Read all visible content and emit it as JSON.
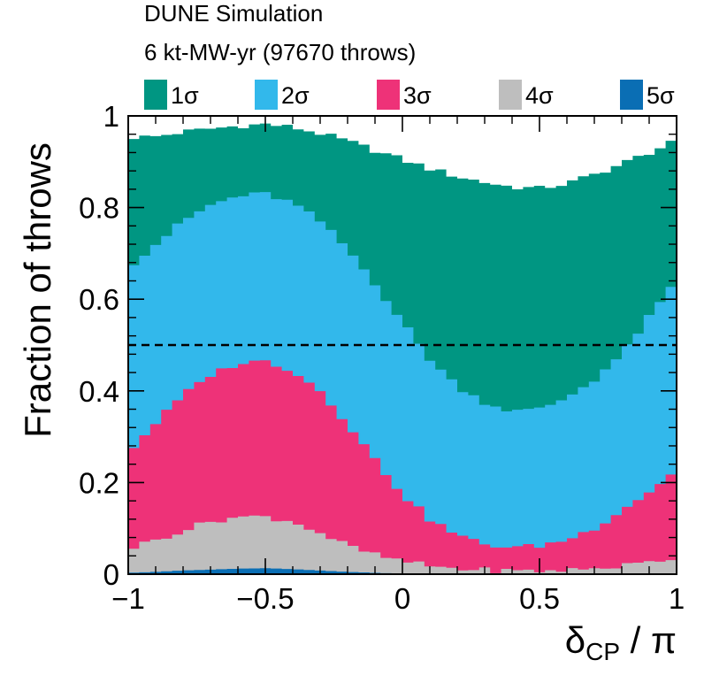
{
  "chart_data": {
    "type": "area",
    "stacked": true,
    "title": "DUNE Simulation",
    "subtitle": "6 kt-MW-yr (97670 throws)",
    "xlabel": "δCP / π",
    "xlabel_main": "δ",
    "xlabel_sub": "CP",
    "xlabel_rest": " / π",
    "ylabel": "Fraction of throws",
    "xlim": [
      -1,
      1
    ],
    "ylim": [
      0,
      1
    ],
    "x_ticks": [
      -1,
      -0.5,
      0,
      0.5,
      1
    ],
    "x_tick_labels": [
      "−1",
      "−0.5",
      "0",
      "0.5",
      "1"
    ],
    "y_ticks": [
      0,
      0.2,
      0.4,
      0.6,
      0.8,
      1
    ],
    "y_tick_labels": [
      "0",
      "0.2",
      "0.4",
      "0.6",
      "0.8",
      "1"
    ],
    "reference_line": {
      "y": 0.5,
      "style": "dashed"
    },
    "legend_position": "top",
    "x": [
      -0.95,
      -0.5,
      0,
      0.5,
      1
    ],
    "series": [
      {
        "name": "1σ",
        "label": "1σ",
        "color": "#009682",
        "points": [
          [
            -1,
            0.953
          ],
          [
            -0.9,
            0.955
          ],
          [
            -0.8,
            0.965
          ],
          [
            -0.7,
            0.972
          ],
          [
            -0.6,
            0.978
          ],
          [
            -0.5,
            0.982
          ],
          [
            -0.4,
            0.975
          ],
          [
            -0.3,
            0.962
          ],
          [
            -0.2,
            0.945
          ],
          [
            -0.1,
            0.925
          ],
          [
            0,
            0.905
          ],
          [
            0.1,
            0.885
          ],
          [
            0.2,
            0.868
          ],
          [
            0.3,
            0.855
          ],
          [
            0.4,
            0.845
          ],
          [
            0.5,
            0.842
          ],
          [
            0.6,
            0.852
          ],
          [
            0.7,
            0.872
          ],
          [
            0.8,
            0.895
          ],
          [
            0.9,
            0.92
          ],
          [
            1,
            0.945
          ]
        ]
      },
      {
        "name": "2σ",
        "label": "2σ",
        "color": "#32b8eb",
        "points": [
          [
            -1,
            0.67
          ],
          [
            -0.9,
            0.72
          ],
          [
            -0.8,
            0.77
          ],
          [
            -0.7,
            0.805
          ],
          [
            -0.6,
            0.825
          ],
          [
            -0.5,
            0.83
          ],
          [
            -0.4,
            0.81
          ],
          [
            -0.3,
            0.77
          ],
          [
            -0.2,
            0.71
          ],
          [
            -0.1,
            0.635
          ],
          [
            0,
            0.55
          ],
          [
            0.1,
            0.47
          ],
          [
            0.2,
            0.41
          ],
          [
            0.3,
            0.375
          ],
          [
            0.4,
            0.355
          ],
          [
            0.5,
            0.36
          ],
          [
            0.6,
            0.385
          ],
          [
            0.7,
            0.425
          ],
          [
            0.8,
            0.48
          ],
          [
            0.9,
            0.56
          ],
          [
            1,
            0.64
          ]
        ]
      },
      {
        "name": "3σ",
        "label": "3σ",
        "color": "#ee3278",
        "points": [
          [
            -1,
            0.265
          ],
          [
            -0.9,
            0.33
          ],
          [
            -0.8,
            0.39
          ],
          [
            -0.7,
            0.435
          ],
          [
            -0.6,
            0.46
          ],
          [
            -0.5,
            0.465
          ],
          [
            -0.4,
            0.445
          ],
          [
            -0.3,
            0.4
          ],
          [
            -0.2,
            0.33
          ],
          [
            -0.1,
            0.25
          ],
          [
            0,
            0.175
          ],
          [
            0.1,
            0.12
          ],
          [
            0.2,
            0.085
          ],
          [
            0.3,
            0.065
          ],
          [
            0.4,
            0.058
          ],
          [
            0.5,
            0.062
          ],
          [
            0.6,
            0.075
          ],
          [
            0.7,
            0.1
          ],
          [
            0.8,
            0.14
          ],
          [
            0.9,
            0.18
          ],
          [
            1,
            0.225
          ]
        ]
      },
      {
        "name": "4σ",
        "label": "4σ",
        "color": "#bebebe",
        "points": [
          [
            -1,
            0.055
          ],
          [
            -0.9,
            0.075
          ],
          [
            -0.8,
            0.095
          ],
          [
            -0.7,
            0.115
          ],
          [
            -0.6,
            0.125
          ],
          [
            -0.5,
            0.125
          ],
          [
            -0.4,
            0.115
          ],
          [
            -0.3,
            0.09
          ],
          [
            -0.2,
            0.062
          ],
          [
            -0.1,
            0.042
          ],
          [
            0,
            0.028
          ],
          [
            0.1,
            0.018
          ],
          [
            0.2,
            0.012
          ],
          [
            0.3,
            0.009
          ],
          [
            0.4,
            0.007
          ],
          [
            0.5,
            0.007
          ],
          [
            0.6,
            0.009
          ],
          [
            0.7,
            0.012
          ],
          [
            0.8,
            0.018
          ],
          [
            0.9,
            0.026
          ],
          [
            1,
            0.036
          ]
        ]
      },
      {
        "name": "5σ",
        "label": "5σ",
        "color": "#0a6eb4",
        "points": [
          [
            -1,
            0.003
          ],
          [
            -0.9,
            0.005
          ],
          [
            -0.8,
            0.008
          ],
          [
            -0.7,
            0.01
          ],
          [
            -0.6,
            0.012
          ],
          [
            -0.5,
            0.013
          ],
          [
            -0.4,
            0.011
          ],
          [
            -0.3,
            0.008
          ],
          [
            -0.2,
            0.005
          ],
          [
            -0.1,
            0.003
          ],
          [
            0,
            0.001
          ],
          [
            0.1,
            0
          ],
          [
            0.2,
            0
          ],
          [
            0.3,
            0
          ],
          [
            0.4,
            0
          ],
          [
            0.5,
            0
          ],
          [
            0.6,
            0
          ],
          [
            0.7,
            0
          ],
          [
            0.8,
            0
          ],
          [
            0.9,
            0
          ],
          [
            1,
            0.001
          ]
        ]
      }
    ]
  }
}
